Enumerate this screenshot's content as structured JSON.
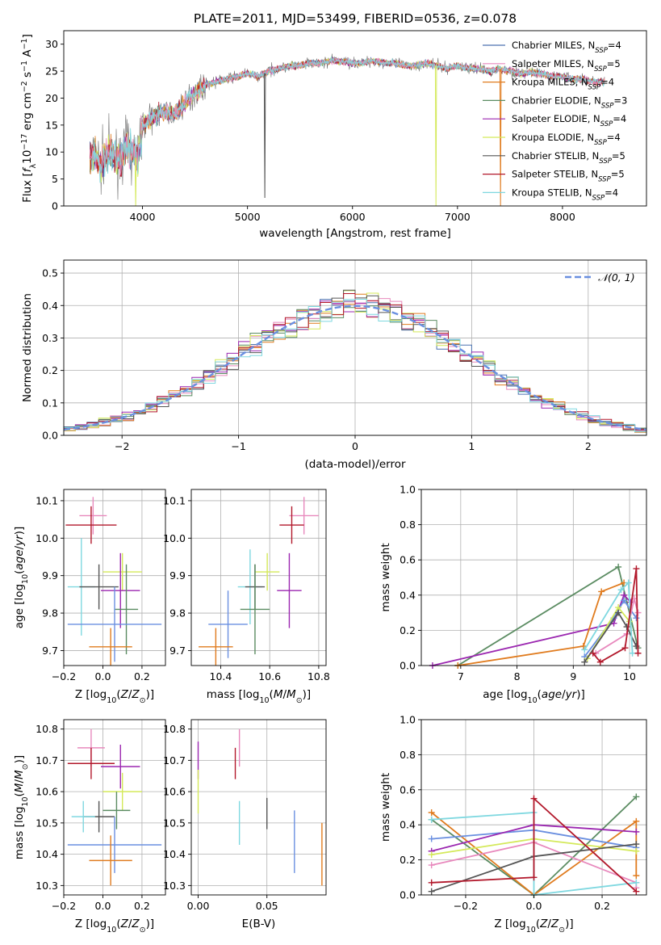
{
  "figure": {
    "title": "PLATE=2011, MJD=53499, FIBERID=0536, z=0.078"
  },
  "colors": {
    "blue": "#4c72b0",
    "ltblue": "#6a8fe0",
    "orange": "#e07b1e",
    "green": "#5b8c62",
    "purple": "#9b27b0",
    "yellow": "#d4e95a",
    "gray": "#555555",
    "red": "#b2182b",
    "cyan": "#7fd8e0",
    "pink": "#e889bd",
    "dash": "#6a8fe0"
  },
  "chart_data": [
    {
      "id": "spectrum",
      "type": "line",
      "xlabel": "wavelength [Angstrom, rest frame]",
      "ylabel": "Flux [f_λ10^-17 erg cm^-2 s^-1 A^-1]",
      "xlim": [
        3250,
        8800
      ],
      "ylim": [
        0,
        32.5
      ],
      "xticks": [
        4000,
        5000,
        6000,
        7000,
        8000
      ],
      "yticks": [
        0,
        5,
        10,
        15,
        20,
        25,
        30
      ],
      "grid": false,
      "legend_position": "right",
      "continuum": {
        "x": [
          3500,
          3550,
          3600,
          3650,
          3700,
          3750,
          3800,
          3850,
          3900,
          3950,
          4000,
          4100,
          4200,
          4300,
          4400,
          4500,
          4600,
          4700,
          4800,
          4900,
          5000,
          5100,
          5200,
          5300,
          5400,
          5500,
          5600,
          5700,
          5800,
          5900,
          6000,
          6100,
          6200,
          6300,
          6400,
          6500,
          6600,
          6700,
          6800,
          6900,
          7000,
          7100,
          7200,
          7300,
          7400,
          7500,
          7600,
          7700,
          7800,
          7900,
          8000,
          8100,
          8200,
          8300,
          8400
        ],
        "y": [
          8.5,
          9.5,
          7.5,
          9.5,
          10.0,
          8.5,
          9.0,
          11.0,
          10.0,
          8.5,
          15.0,
          16.5,
          17.5,
          17.0,
          19.0,
          21.0,
          22.5,
          23.0,
          23.5,
          24.0,
          24.5,
          24.0,
          25.0,
          25.5,
          26.0,
          26.0,
          26.5,
          26.5,
          27.0,
          26.8,
          26.5,
          26.5,
          27.0,
          26.5,
          26.5,
          26.0,
          26.0,
          26.5,
          26.0,
          25.5,
          26.0,
          25.5,
          25.5,
          25.0,
          25.5,
          25.0,
          24.5,
          24.8,
          24.5,
          24.0,
          24.0,
          23.5,
          23.5,
          23.0,
          23.0
        ]
      },
      "dips": [
        {
          "x": 3935,
          "y": 0
        },
        {
          "x": 5165,
          "y": 1.5
        },
        {
          "x": 6795,
          "y": 0
        },
        {
          "x": 7410,
          "y": 0
        }
      ],
      "series": [
        {
          "name": "Chabrier MILES, N_SSP=4",
          "label_main": "Chabrier MILES, N",
          "label_sub": "SSP",
          "label_tail": "=4",
          "color": "#4c72b0"
        },
        {
          "name": "Salpeter MILES, N_SSP=5",
          "label_main": "Salpeter MILES, N",
          "label_sub": "SSP",
          "label_tail": "=5",
          "color": "#e889bd"
        },
        {
          "name": "Kroupa MILES, N_SSP=4",
          "label_main": "Kroupa MILES, N",
          "label_sub": "SSP",
          "label_tail": "=4",
          "color": "#e07b1e"
        },
        {
          "name": "Chabrier ELODIE, N_SSP=3",
          "label_main": "Chabrier ELODIE, N",
          "label_sub": "SSP",
          "label_tail": "=3",
          "color": "#5b8c62"
        },
        {
          "name": "Salpeter ELODIE, N_SSP=4",
          "label_main": "Salpeter ELODIE, N",
          "label_sub": "SSP",
          "label_tail": "=4",
          "color": "#9b27b0"
        },
        {
          "name": "Kroupa ELODIE, N_SSP=4",
          "label_main": "Kroupa ELODIE, N",
          "label_sub": "SSP",
          "label_tail": "=4",
          "color": "#d4e95a"
        },
        {
          "name": "Chabrier STELIB, N_SSP=5",
          "label_main": "Chabrier STELIB, N",
          "label_sub": "SSP",
          "label_tail": "=5",
          "color": "#555555"
        },
        {
          "name": "Salpeter STELIB, N_SSP=5",
          "label_main": "Salpeter STELIB, N",
          "label_sub": "SSP",
          "label_tail": "=5",
          "color": "#b2182b"
        },
        {
          "name": "Kroupa STELIB, N_SSP=4",
          "label_main": "Kroupa STELIB, N",
          "label_sub": "SSP",
          "label_tail": "=4",
          "color": "#7fd8e0"
        }
      ]
    },
    {
      "id": "residuals",
      "type": "histogram",
      "xlabel": "(data-model)/error",
      "ylabel": "Normed distribution",
      "xlim": [
        -2.5,
        2.5
      ],
      "ylim": [
        0,
        0.54
      ],
      "xticks": [
        -2,
        -1,
        0,
        1,
        2
      ],
      "yticks": [
        0.0,
        0.1,
        0.2,
        0.3,
        0.4,
        0.5
      ],
      "grid": true,
      "bin_width": 0.1,
      "reference": {
        "name": "N(0,1)",
        "label": "𝒩(0, 1)",
        "mean": 0,
        "sigma": 1,
        "style": "dashed"
      },
      "legend_position": "top-right"
    },
    {
      "id": "age_vs_Z",
      "type": "scatter_errorbar",
      "xlabel": "Z [log10(Z/Z⊙)]",
      "ylabel": "age [log10(age/yr)]",
      "xlim": [
        -0.2,
        0.32
      ],
      "ylim": [
        9.66,
        10.13
      ],
      "xticks": [
        -0.2,
        0.0,
        0.2
      ],
      "xticklabels": [
        "−0.2",
        "0.0",
        "0.2"
      ],
      "yticks": [
        9.7,
        9.8,
        9.9,
        10.0,
        10.1
      ],
      "grid": true,
      "points": [
        {
          "color": "#e889bd",
          "x": -0.05,
          "xerr": 0.07,
          "y": 10.06,
          "yerr": 0.05
        },
        {
          "color": "#b2182b",
          "x": -0.06,
          "xerr": 0.13,
          "y": 10.035,
          "yerr": 0.05
        },
        {
          "color": "#d4e95a",
          "x": 0.1,
          "xerr": 0.1,
          "y": 9.91,
          "yerr": 0.05
        },
        {
          "color": "#7fd8e0",
          "x": -0.11,
          "xerr": 0.07,
          "y": 9.87,
          "yerr": 0.13
        },
        {
          "color": "#555555",
          "x": -0.02,
          "xerr": 0.1,
          "y": 9.87,
          "yerr": 0.06
        },
        {
          "color": "#9b27b0",
          "x": 0.09,
          "xerr": 0.1,
          "y": 9.86,
          "yerr": 0.1
        },
        {
          "color": "#5b8c62",
          "x": 0.12,
          "xerr": 0.06,
          "y": 9.81,
          "yerr": 0.12
        },
        {
          "color": "#6a8fe0",
          "x": 0.06,
          "xerr": 0.24,
          "y": 9.77,
          "yerr": 0.1
        },
        {
          "color": "#e07b1e",
          "x": 0.04,
          "xerr": 0.11,
          "y": 9.71,
          "yerr": 0.05
        }
      ]
    },
    {
      "id": "age_vs_mass",
      "type": "scatter_errorbar",
      "xlabel": "mass [log10(M/M⊙)]",
      "ylabel": "",
      "xlim": [
        10.28,
        10.83
      ],
      "ylim": [
        9.66,
        10.13
      ],
      "xticks": [
        10.4,
        10.6,
        10.8
      ],
      "xticklabels": [
        "10.4",
        "10.6",
        "10.8"
      ],
      "yticks": [
        9.7,
        9.8,
        9.9,
        10.0,
        10.1
      ],
      "grid": true,
      "points": [
        {
          "color": "#e889bd",
          "x": 10.74,
          "xerr": 0.06,
          "y": 10.06,
          "yerr": 0.05
        },
        {
          "color": "#b2182b",
          "x": 10.69,
          "xerr": 0.05,
          "y": 10.035,
          "yerr": 0.05
        },
        {
          "color": "#d4e95a",
          "x": 10.59,
          "xerr": 0.05,
          "y": 9.91,
          "yerr": 0.05
        },
        {
          "color": "#7fd8e0",
          "x": 10.52,
          "xerr": 0.05,
          "y": 9.87,
          "yerr": 0.1
        },
        {
          "color": "#555555",
          "x": 10.54,
          "xerr": 0.04,
          "y": 9.87,
          "yerr": 0.06
        },
        {
          "color": "#9b27b0",
          "x": 10.68,
          "xerr": 0.05,
          "y": 9.86,
          "yerr": 0.1
        },
        {
          "color": "#5b8c62",
          "x": 10.54,
          "xerr": 0.06,
          "y": 9.81,
          "yerr": 0.12
        },
        {
          "color": "#6a8fe0",
          "x": 10.43,
          "xerr": 0.08,
          "y": 9.77,
          "yerr": 0.09
        },
        {
          "color": "#e07b1e",
          "x": 10.38,
          "xerr": 0.07,
          "y": 9.71,
          "yerr": 0.05
        }
      ]
    },
    {
      "id": "weight_vs_age",
      "type": "line",
      "xlabel": "age [log10(age/yr)]",
      "ylabel": "mass weight",
      "xlim": [
        6.3,
        10.3
      ],
      "ylim": [
        0,
        1
      ],
      "xticks": [
        7,
        8,
        9,
        10
      ],
      "yticks": [
        0.0,
        0.2,
        0.4,
        0.6,
        0.8,
        1.0
      ],
      "grid": true,
      "series": [
        {
          "color": "#5b8c62",
          "x": [
            6.95,
            9.8,
            10.15
          ],
          "y": [
            0.0,
            0.56,
            0.1
          ]
        },
        {
          "color": "#9b27b0",
          "x": [
            6.5,
            9.72,
            9.9,
            10.02
          ],
          "y": [
            0.0,
            0.24,
            0.4,
            0.36
          ]
        },
        {
          "color": "#e07b1e",
          "x": [
            6.95,
            9.18,
            9.5,
            9.9
          ],
          "y": [
            0.0,
            0.11,
            0.42,
            0.47
          ]
        },
        {
          "color": "#6a8fe0",
          "x": [
            9.2,
            9.72,
            9.9,
            10.12
          ],
          "y": [
            0.05,
            0.27,
            0.37,
            0.27
          ]
        },
        {
          "color": "#e889bd",
          "x": [
            9.4,
            9.95,
            10.08,
            10.15
          ],
          "y": [
            0.07,
            0.18,
            0.38,
            0.3
          ]
        },
        {
          "color": "#d4e95a",
          "x": [
            9.25,
            9.8,
            10.0
          ],
          "y": [
            0.04,
            0.33,
            0.25
          ]
        },
        {
          "color": "#555555",
          "x": [
            9.2,
            9.8,
            9.95,
            10.12
          ],
          "y": [
            0.02,
            0.3,
            0.22,
            0.11
          ]
        },
        {
          "color": "#7fd8e0",
          "x": [
            9.2,
            9.85,
            9.98,
            10.05
          ],
          "y": [
            0.09,
            0.43,
            0.47,
            0.07
          ]
        },
        {
          "color": "#b2182b",
          "x": [
            9.35,
            9.48,
            9.92,
            10.12,
            10.15
          ],
          "y": [
            0.07,
            0.02,
            0.1,
            0.55,
            0.07
          ]
        }
      ]
    },
    {
      "id": "mass_vs_Z",
      "type": "scatter_errorbar",
      "xlabel": "Z [log10(Z/Z⊙)]",
      "ylabel": "mass [log10(M/M⊙)]",
      "xlim": [
        -0.2,
        0.32
      ],
      "ylim": [
        10.27,
        10.83
      ],
      "xticks": [
        -0.2,
        0.0,
        0.2
      ],
      "xticklabels": [
        "−0.2",
        "0.0",
        "0.2"
      ],
      "yticks": [
        10.3,
        10.4,
        10.5,
        10.6,
        10.7,
        10.8
      ],
      "grid": true,
      "points": [
        {
          "color": "#e889bd",
          "x": -0.06,
          "xerr": 0.07,
          "y": 10.74,
          "yerr": 0.06
        },
        {
          "color": "#b2182b",
          "x": -0.06,
          "xerr": 0.12,
          "y": 10.69,
          "yerr": 0.05
        },
        {
          "color": "#9b27b0",
          "x": 0.09,
          "xerr": 0.1,
          "y": 10.68,
          "yerr": 0.07
        },
        {
          "color": "#d4e95a",
          "x": 0.1,
          "xerr": 0.1,
          "y": 10.6,
          "yerr": 0.06
        },
        {
          "color": "#5b8c62",
          "x": 0.07,
          "xerr": 0.07,
          "y": 10.54,
          "yerr": 0.06
        },
        {
          "color": "#555555",
          "x": -0.02,
          "xerr": 0.08,
          "y": 10.52,
          "yerr": 0.05
        },
        {
          "color": "#7fd8e0",
          "x": -0.1,
          "xerr": 0.06,
          "y": 10.52,
          "yerr": 0.05
        },
        {
          "color": "#6a8fe0",
          "x": 0.06,
          "xerr": 0.24,
          "y": 10.43,
          "yerr": 0.09
        },
        {
          "color": "#e07b1e",
          "x": 0.04,
          "xerr": 0.11,
          "y": 10.38,
          "yerr": 0.08
        }
      ]
    },
    {
      "id": "mass_vs_ebv",
      "type": "scatter_errorbar",
      "xlabel": "E(B-V)",
      "ylabel": "",
      "xlim": [
        -0.005,
        0.093
      ],
      "ylim": [
        10.27,
        10.83
      ],
      "xticks": [
        0.0,
        0.05
      ],
      "xticklabels": [
        "0.00",
        "0.05"
      ],
      "yticks": [
        10.3,
        10.4,
        10.5,
        10.6,
        10.7,
        10.8
      ],
      "grid": true,
      "points": [
        {
          "color": "#9b27b0",
          "x": 0.0,
          "xerr": 0,
          "y": 10.7,
          "yerr": 0.06
        },
        {
          "color": "#d4e95a",
          "x": 0.0,
          "xerr": 0,
          "y": 10.6,
          "yerr": 0.07
        },
        {
          "color": "#e889bd",
          "x": 0.03,
          "xerr": 0,
          "y": 10.74,
          "yerr": 0.06
        },
        {
          "color": "#b2182b",
          "x": 0.027,
          "xerr": 0,
          "y": 10.69,
          "yerr": 0.05
        },
        {
          "color": "#7fd8e0",
          "x": 0.03,
          "xerr": 0,
          "y": 10.5,
          "yerr": 0.07
        },
        {
          "color": "#555555",
          "x": 0.05,
          "xerr": 0,
          "y": 10.53,
          "yerr": 0.05
        },
        {
          "color": "#6a8fe0",
          "x": 0.07,
          "xerr": 0,
          "y": 10.44,
          "yerr": 0.1
        },
        {
          "color": "#e07b1e",
          "x": 0.09,
          "xerr": 0,
          "y": 10.4,
          "yerr": 0.1
        }
      ]
    },
    {
      "id": "weight_vs_Z",
      "type": "line",
      "xlabel": "Z [log10(Z/Z⊙)]",
      "ylabel": "mass weight",
      "xlim": [
        -0.33,
        0.33
      ],
      "ylim": [
        0,
        1
      ],
      "xticks": [
        -0.2,
        0.0,
        0.2
      ],
      "xticklabels": [
        "−0.2",
        "0.0",
        "0.2"
      ],
      "yticks": [
        0.0,
        0.2,
        0.4,
        0.6,
        0.8,
        1.0
      ],
      "grid": true,
      "series": [
        {
          "color": "#5b8c62",
          "x": [
            -0.3,
            0.0,
            0.3
          ],
          "y": [
            0.43,
            0.0,
            0.56
          ]
        },
        {
          "color": "#e07b1e",
          "x": [
            -0.3,
            0.0,
            0.3,
            0.3
          ],
          "y": [
            0.47,
            0.0,
            0.42,
            0.11
          ]
        },
        {
          "color": "#6a8fe0",
          "x": [
            -0.3,
            0.0,
            0.3
          ],
          "y": [
            0.32,
            0.37,
            0.27
          ]
        },
        {
          "color": "#e889bd",
          "x": [
            -0.3,
            0.0,
            0.3,
            0.3
          ],
          "y": [
            0.17,
            0.3,
            0.07,
            0.04
          ]
        },
        {
          "color": "#9b27b0",
          "x": [
            -0.3,
            0.0,
            0.3
          ],
          "y": [
            0.25,
            0.4,
            0.36
          ]
        },
        {
          "color": "#d4e95a",
          "x": [
            -0.3,
            0.0,
            0.3
          ],
          "y": [
            0.23,
            0.32,
            0.25
          ]
        },
        {
          "color": "#555555",
          "x": [
            -0.3,
            0.0,
            0.3
          ],
          "y": [
            0.02,
            0.22,
            0.29
          ]
        },
        {
          "color": "#7fd8e0",
          "x": [
            -0.3,
            0.0,
            0.0,
            0.3
          ],
          "y": [
            0.43,
            0.47,
            0.0,
            0.07
          ]
        },
        {
          "color": "#b2182b",
          "x": [
            -0.3,
            0.0,
            0.0,
            0.3
          ],
          "y": [
            0.07,
            0.1,
            0.55,
            0.02
          ]
        }
      ]
    }
  ]
}
